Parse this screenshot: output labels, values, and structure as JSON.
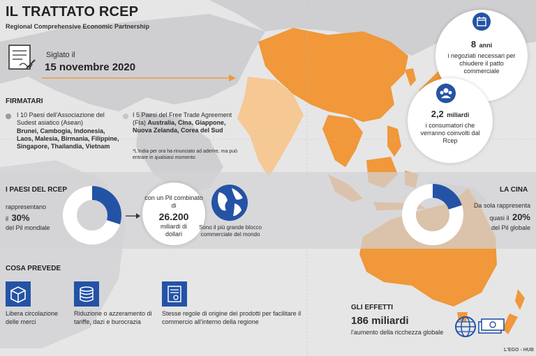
{
  "header": {
    "title": "IL TRATTATO RCEP",
    "subtitle": "Regional Comprehensive Economic Partnership"
  },
  "signing": {
    "label": "Siglato il",
    "date": "15 novembre 2020"
  },
  "firmatari": {
    "heading": "FIRMATARI",
    "asean_intro": "I 10 Paesi dell'Associazione del Sudest asiatico (Asean)",
    "asean_countries": "Brunei, Cambogia, Indonesia, Laos, Malesia, Birmania, Filippine, Singapore, Thailandia, Vietnam",
    "fta_intro": "I 5 Paesi del Free Trade Agreement (Fta)",
    "fta_countries": "Australia, Cina, Giappone, Nuova Zelanda, Corea del Sud",
    "india_note": "*L'India per ora ha rinunciato ad aderire, ma può entrare in qualsiasi momento"
  },
  "stats": {
    "years_value": "8",
    "years_unit": "anni",
    "years_text": "i negoziati necessari per chiudere il patto commerciale",
    "consumers_value": "2,2",
    "consumers_unit": "miliardi",
    "consumers_text": "i consumatori che verranno coinvolti dal Rcep"
  },
  "paesi": {
    "heading": "I PAESI DEL RCEP",
    "represent_label": "rappresentano",
    "pct_prefix": "il",
    "pct": "30%",
    "pct_suffix": "del Pil mondiale",
    "pil_intro": "con un Pil combinato di",
    "pil_value": "26.200",
    "pil_unit": "miliardi di dollari",
    "bloc_text": "Sono il più grande blocco commerciale del mondo",
    "donut_fraction": 0.3
  },
  "cina": {
    "heading": "LA CINA",
    "text1": "Da sola rappresenta",
    "prefix": "quasi il",
    "pct": "20%",
    "suffix": "del Pil globale",
    "donut_fraction": 0.2
  },
  "prevede": {
    "heading": "COSA PREVEDE",
    "item1": "Libera circolazione delle merci",
    "item2": "Riduzione o azzeramento di tariffe, dazi e burocrazia",
    "item3": "Stesse regole di origine dei prodotti per facilitare il commercio all'interno della regione"
  },
  "effetti": {
    "heading": "GLI EFFETTI",
    "value": "186 miliardi",
    "text": "l'aumento della ricchezza globale"
  },
  "credit": "L'EGO - HUB",
  "colors": {
    "orange": "#f0983a",
    "light_orange": "#f6c894",
    "blue": "#2453a6",
    "land_grey": "#cfcfd2"
  },
  "icons": [
    "document-icon",
    "calendar-icon",
    "people-icon",
    "globe-icon",
    "box-icon",
    "coins-icon",
    "certificate-icon",
    "money-icon"
  ]
}
